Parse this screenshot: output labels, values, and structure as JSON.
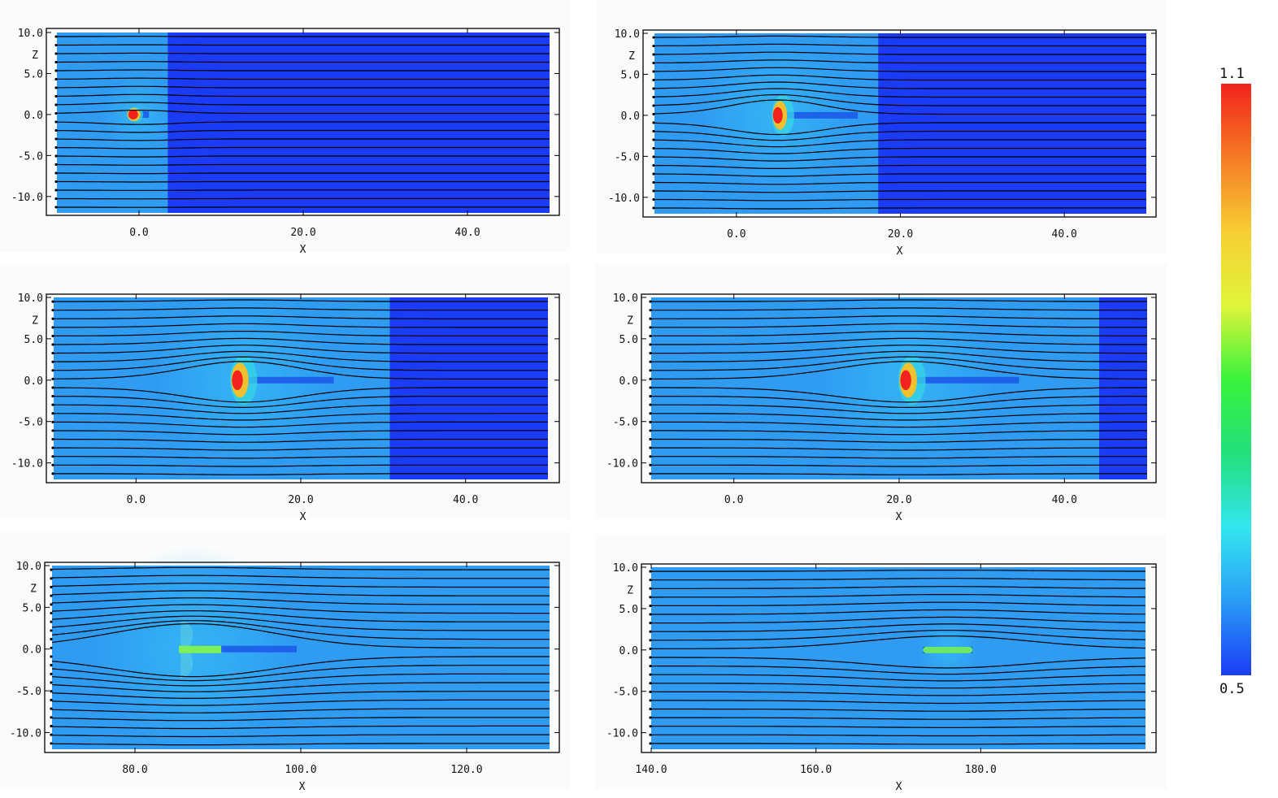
{
  "colors": {
    "ambient": "#2f9bf3",
    "unshocked": "#1b3cf6",
    "streamline": "#000000",
    "colormap": [
      "#1b3cf6",
      "#2a9cf6",
      "#33e6f0",
      "#22e07a",
      "#39f23c",
      "#dff53a",
      "#f7ce33",
      "#f57b24",
      "#f2231c"
    ]
  },
  "colorbar": {
    "max_label": "1.1",
    "min_label": "0.5",
    "min": 0.5,
    "max": 1.1
  },
  "chart_data": [
    {
      "type": "heatmap",
      "panel": "t1",
      "xlabel": "X",
      "ylabel": "Z",
      "xlim": [
        -10,
        50
      ],
      "ylim": [
        -12,
        10
      ],
      "xticks": [
        0,
        20,
        40
      ],
      "xtick_labels": [
        "0.0",
        "20.0",
        "40.0"
      ],
      "yticks": [
        10,
        5,
        0,
        -5,
        -10
      ],
      "ytick_labels": [
        "10.0",
        "5.0",
        "0.0",
        "-5.0",
        "-10.0"
      ],
      "shock_x": 3.5,
      "cloud": {
        "x": 0,
        "head_x": -0.8,
        "half_height": 0.9,
        "tail_length": 2.0,
        "deflection": 0.4
      },
      "num_streamlines": 21
    },
    {
      "type": "heatmap",
      "panel": "t2",
      "xlabel": "X",
      "ylabel": "Z",
      "xlim": [
        -10,
        50
      ],
      "ylim": [
        -12,
        10
      ],
      "xticks": [
        0,
        20,
        40
      ],
      "xtick_labels": [
        "0.0",
        "20.0",
        "40.0"
      ],
      "yticks": [
        10,
        5,
        0,
        -5,
        -10
      ],
      "ytick_labels": [
        "10.0",
        "5.0",
        "0.0",
        "-5.0",
        "-10.0"
      ],
      "shock_x": 17.3,
      "cloud": {
        "x": 5,
        "head_x": 4.8,
        "half_height": 2.5,
        "tail_length": 10.0,
        "deflection": 1.8
      },
      "num_streamlines": 21
    },
    {
      "type": "heatmap",
      "panel": "t3",
      "xlabel": "X",
      "ylabel": "Z",
      "xlim": [
        -10,
        50
      ],
      "ylim": [
        -12,
        10
      ],
      "xticks": [
        0,
        20,
        40
      ],
      "xtick_labels": [
        "0.0",
        "20.0",
        "40.0"
      ],
      "yticks": [
        10,
        5,
        0,
        -5,
        -10
      ],
      "ytick_labels": [
        "10.0",
        "5.0",
        "0.0",
        "-5.0",
        "-10.0"
      ],
      "shock_x": 30.8,
      "cloud": {
        "x": 13,
        "head_x": 12,
        "half_height": 3.0,
        "tail_length": 12.0,
        "deflection": 2.2
      },
      "num_streamlines": 21
    },
    {
      "type": "heatmap",
      "panel": "t4",
      "xlabel": "X",
      "ylabel": "Z",
      "xlim": [
        -10,
        50
      ],
      "ylim": [
        -12,
        10
      ],
      "xticks": [
        0,
        20,
        40
      ],
      "xtick_labels": [
        "0.0",
        "20.0",
        "40.0"
      ],
      "yticks": [
        10,
        5,
        0,
        -5,
        -10
      ],
      "ytick_labels": [
        "10.0",
        "5.0",
        "0.0",
        "-5.0",
        "-10.0"
      ],
      "shock_x": 44.2,
      "cloud": {
        "x": 21,
        "head_x": 20.5,
        "half_height": 3.0,
        "tail_length": 14.0,
        "deflection": 2.2
      },
      "num_streamlines": 21
    },
    {
      "type": "heatmap",
      "panel": "t5",
      "xlabel": "X",
      "ylabel": "Z",
      "xlim": [
        70,
        130
      ],
      "ylim": [
        -12,
        10
      ],
      "xticks": [
        80,
        100,
        120
      ],
      "xtick_labels": [
        "80.0",
        "100.0",
        "120.0"
      ],
      "yticks": [
        10,
        5,
        0,
        -5,
        -10
      ],
      "ytick_labels": [
        "10.0",
        "5.0",
        "0.0",
        "-5.0",
        "-10.0"
      ],
      "shock_x": null,
      "cloud": {
        "x": 87,
        "head_x": 85.5,
        "half_height": 3.5,
        "tail_length": 14.0,
        "deflection": 3.0
      },
      "num_streamlines": 21
    },
    {
      "type": "heatmap",
      "panel": "t6",
      "xlabel": "X",
      "ylabel": "Z",
      "xlim": [
        140,
        200
      ],
      "ylim": [
        -12,
        10
      ],
      "xticks": [
        140,
        160,
        180
      ],
      "xtick_labels": [
        "140.0",
        "160.0",
        "180.0"
      ],
      "yticks": [
        10,
        5,
        0,
        -5,
        -10
      ],
      "ytick_labels": [
        "10.0",
        "5.0",
        "0.0",
        "-5.0",
        "-10.0"
      ],
      "shock_x": null,
      "cloud": {
        "x": 176,
        "head_x": 173,
        "half_height": 0.6,
        "tail_length": 6.0,
        "deflection": 1.6
      },
      "num_streamlines": 21
    }
  ]
}
